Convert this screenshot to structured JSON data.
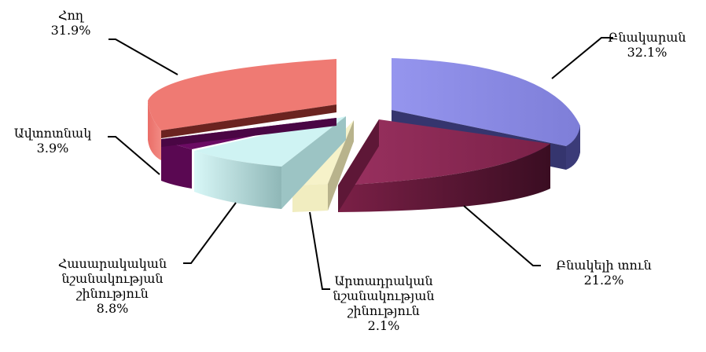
{
  "chart_data": {
    "type": "pie",
    "title": "",
    "slices": [
      {
        "label_lines": [
          "Բնակարան"
        ],
        "value_label": "32.1%",
        "value": 32.1,
        "color": "#8f8fe8",
        "dark": "#3a3a78"
      },
      {
        "label_lines": [
          "Բնակելի տուն"
        ],
        "value_label": "21.2%",
        "value": 21.2,
        "color": "#8e2a55",
        "dark": "#4e1630"
      },
      {
        "label_lines": [
          "Արտադրական",
          "նշանակության",
          "շինություն"
        ],
        "value_label": "2.1%",
        "value": 2.1,
        "color": "#f5f1c8",
        "dark": "#c7c29a"
      },
      {
        "label_lines": [
          "Հասարակական",
          "նշանակության",
          "շինություն"
        ],
        "value_label": "8.8%",
        "value": 8.8,
        "color": "#cdf2f2",
        "dark": "#86aaaa"
      },
      {
        "label_lines": [
          "Ավտոտնակ"
        ],
        "value_label": "3.9%",
        "value": 3.9,
        "color": "#6a0a63",
        "dark": "#45053f"
      },
      {
        "label_lines": [
          "Հող"
        ],
        "value_label": "31.9%",
        "value": 31.9,
        "color": "#ef7a73",
        "dark": "#c65d57"
      }
    ]
  }
}
